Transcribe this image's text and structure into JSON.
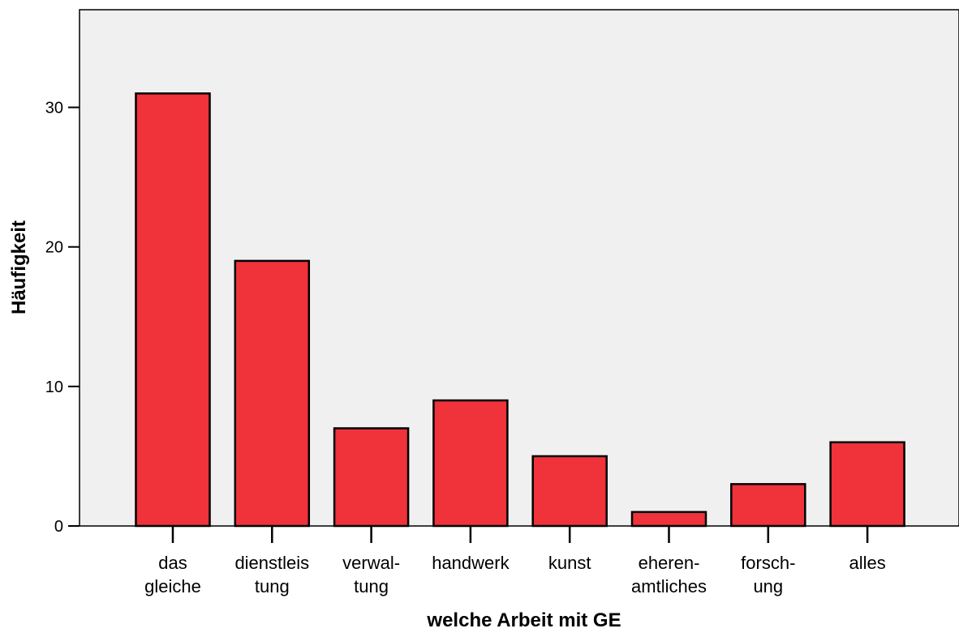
{
  "colors": {
    "bar_fill": "#f0323a",
    "bar_stroke": "#000000",
    "plot_bg": "#f0f0f0",
    "axis": "#000000"
  },
  "chart_data": {
    "type": "bar",
    "title": "",
    "xlabel": "welche Arbeit mit GE",
    "ylabel": "Häufigkeit",
    "categories": [
      [
        "das",
        "gleiche"
      ],
      [
        "dienstleis",
        "tung"
      ],
      [
        "verwal-",
        "tung"
      ],
      [
        "handwerk"
      ],
      [
        "kunst"
      ],
      [
        "eheren-",
        "amtliches"
      ],
      [
        "forsch-",
        "ung"
      ],
      [
        "alles"
      ]
    ],
    "values": [
      31,
      19,
      7,
      9,
      5,
      1,
      3,
      6
    ],
    "yticks": [
      0,
      10,
      20,
      30
    ],
    "ylim": [
      0,
      37
    ],
    "grid": false,
    "legend": "none"
  }
}
